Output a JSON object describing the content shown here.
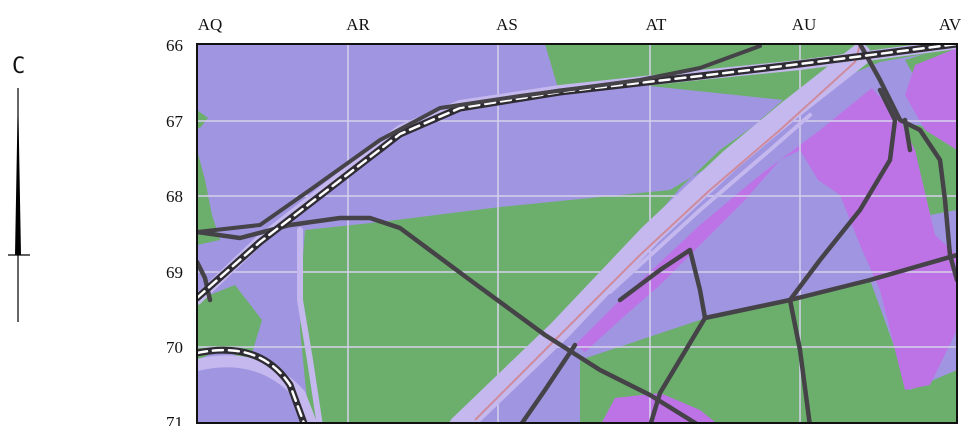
{
  "map": {
    "north_label": "C",
    "column_labels": [
      "AQ",
      "AR",
      "AS",
      "AT",
      "AU",
      "AV"
    ],
    "row_labels": [
      "66",
      "67",
      "68",
      "69",
      "70",
      "71"
    ],
    "colors": {
      "residential_purple": "#a095e0",
      "green_area": "#6caf6c",
      "magenta_area": "#bd72e6",
      "road_dark": "#454248",
      "road_light": "#c4b8ee",
      "rail_white": "#ffffff",
      "gridline": "#d6d1ec",
      "frame": "#111111"
    }
  }
}
